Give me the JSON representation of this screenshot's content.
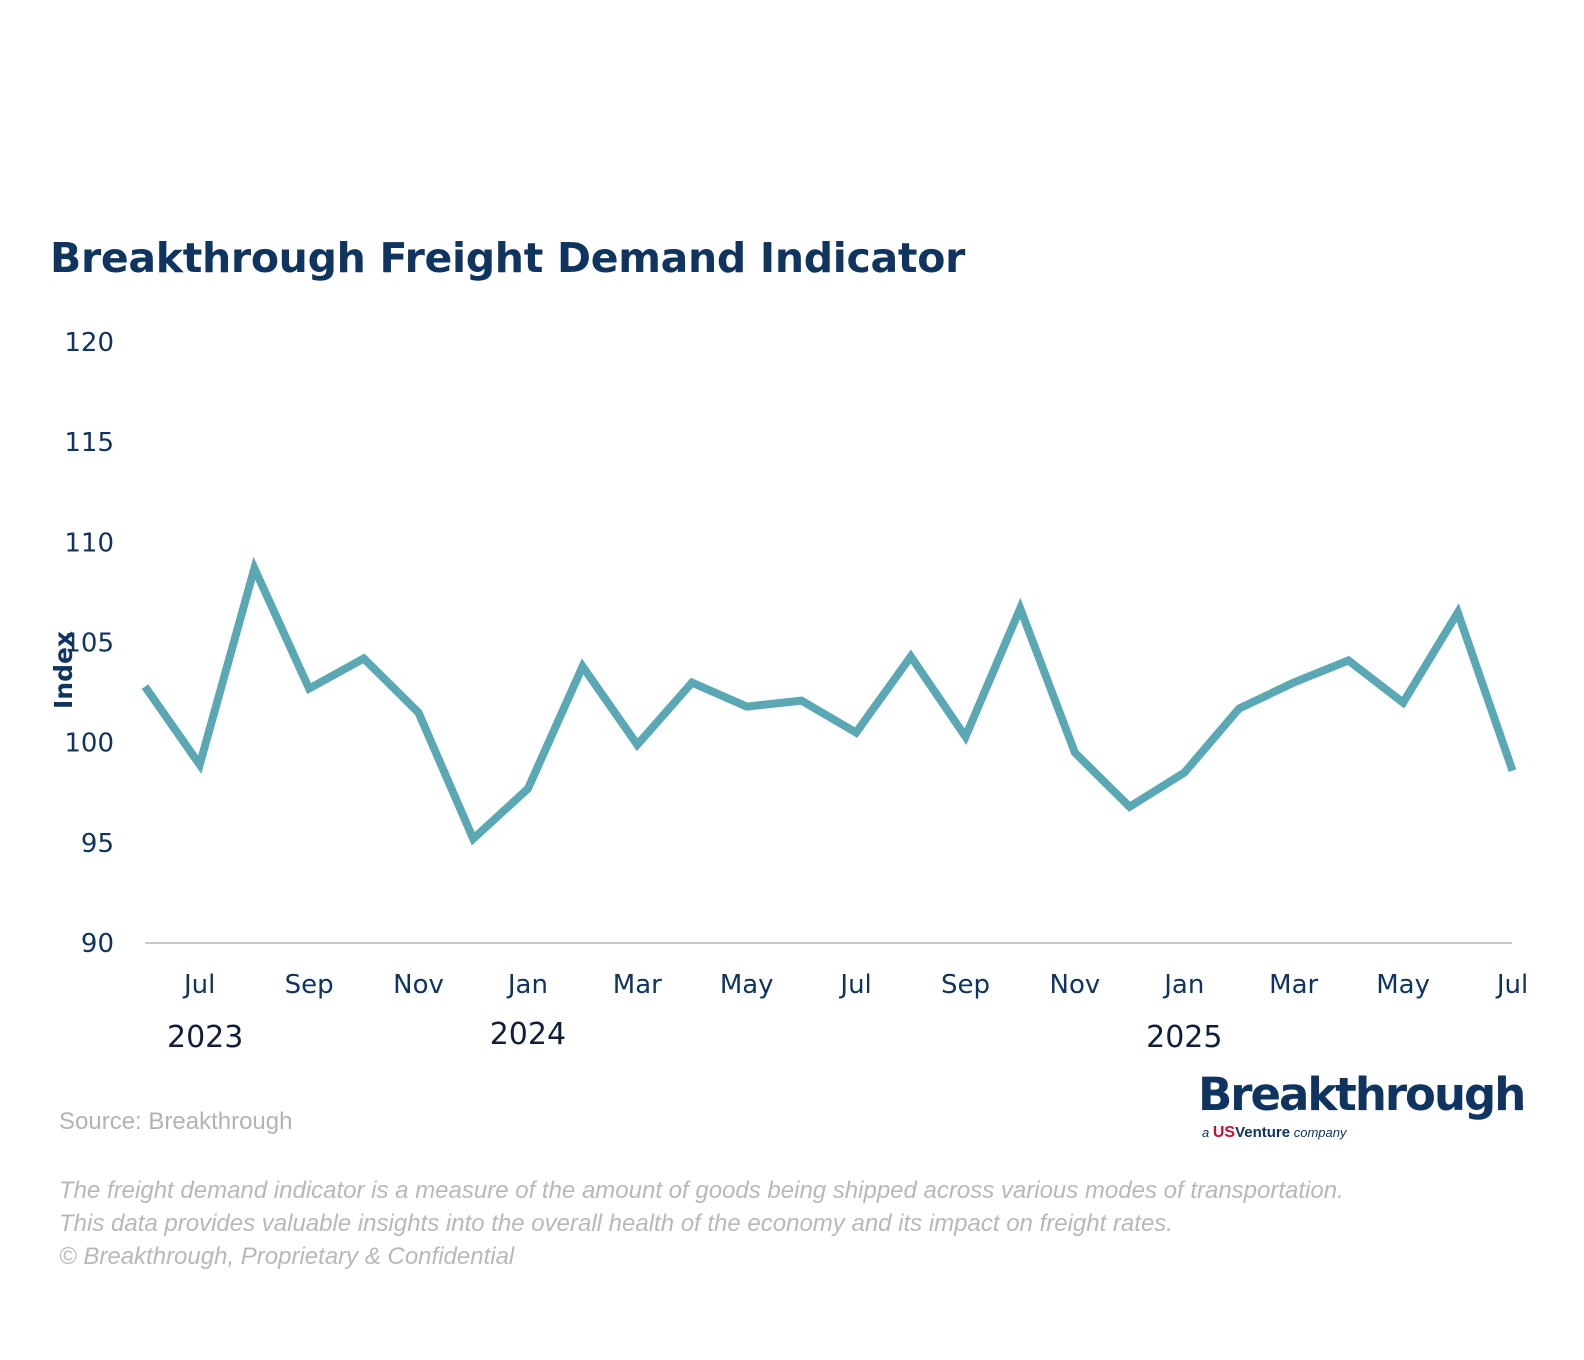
{
  "chart_data": {
    "type": "line",
    "title": "Breakthrough Freight Demand Indicator",
    "ylabel": "Index",
    "xlabel": "",
    "ylim": [
      90,
      120
    ],
    "yticks": [
      90,
      95,
      100,
      105,
      110,
      115,
      120
    ],
    "x_tick_labels": [
      "Jul",
      "Sep",
      "Nov",
      "Jan",
      "Mar",
      "May",
      "Jul",
      "Sep",
      "Nov",
      "Jan",
      "Mar",
      "May",
      "Jul"
    ],
    "year_labels": [
      "2023",
      "2024",
      "2025"
    ],
    "grid": false,
    "x": [
      "2023-06",
      "2023-07",
      "2023-08",
      "2023-09",
      "2023-10",
      "2023-11",
      "2023-12",
      "2024-01",
      "2024-02",
      "2024-03",
      "2024-04",
      "2024-05",
      "2024-06",
      "2024-07",
      "2024-08",
      "2024-09",
      "2024-10",
      "2024-11",
      "2024-12",
      "2025-01",
      "2025-02",
      "2025-03",
      "2025-04",
      "2025-05",
      "2025-06",
      "2025-07"
    ],
    "series": [
      {
        "values": [
          102.8,
          98.9,
          108.7,
          102.7,
          104.2,
          101.5,
          95.2,
          97.7,
          103.8,
          99.9,
          103.0,
          101.8,
          102.1,
          100.5,
          104.3,
          100.3,
          106.7,
          99.5,
          96.8,
          98.5,
          101.7,
          103.0,
          104.1,
          102.0,
          106.5,
          98.6
        ],
        "color": "#5ba8b5"
      }
    ]
  },
  "footer": {
    "source": "Source: Breakthrough",
    "note_line1": "The freight demand indicator is a measure of the amount of goods being shipped across various modes of transportation.",
    "note_line2": "This data provides valuable insights into the overall health of the economy and its impact on freight rates.",
    "note_line3": "© Breakthrough, Proprietary & Confidential"
  },
  "logo": {
    "wordmark": "Breakthrough",
    "reg": "®",
    "tag_a": "a",
    "tag_us": "US",
    "tag_venture": "Venture",
    "tag_company": "company"
  },
  "colors": {
    "title": "#0f3460",
    "axis_text": "#0f3460",
    "line": "#5ba8b5",
    "axis_line": "#c8c8c8",
    "footer_text": "#b3b3b3"
  }
}
